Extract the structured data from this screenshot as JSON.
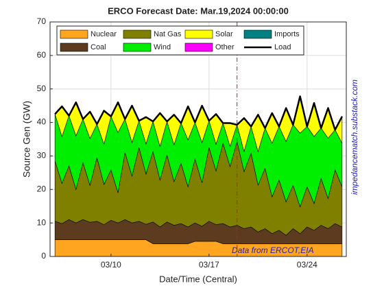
{
  "chart_data": {
    "type": "area",
    "title": "ERCO Forecast Date: Mar.19,2024 00:00:00",
    "xlabel": "Date/Time (Central)",
    "ylabel": "Source Gen (GW)",
    "annotations": [
      "Data from ERCOT,EIA",
      "impedancematch.substack.com"
    ],
    "forecast_line": {
      "x": 19,
      "color": "#b22222"
    },
    "xlim": [
      5.65,
      26.8
    ],
    "xticks": [
      {
        "value": 10,
        "label": "03/10"
      },
      {
        "value": 17,
        "label": "03/17"
      },
      {
        "value": 24,
        "label": "03/24"
      }
    ],
    "ylim": [
      0,
      70
    ],
    "yticks": [
      0,
      10,
      20,
      30,
      40,
      50,
      60,
      70
    ],
    "grid": true,
    "legend": "top",
    "x": [
      6,
      6.5,
      7,
      7.5,
      8,
      8.5,
      9,
      9.5,
      10,
      10.5,
      11,
      11.5,
      12,
      12.5,
      13,
      13.5,
      14,
      14.5,
      15,
      15.5,
      16,
      16.5,
      17,
      17.5,
      18,
      18.5,
      19,
      19.5,
      20,
      20.5,
      21,
      21.5,
      22,
      22.5,
      23,
      23.5,
      24,
      24.5,
      25,
      25.5,
      26,
      26.5
    ],
    "series": [
      {
        "name": "Nuclear",
        "color": "#ffa51f",
        "values": [
          5,
          5,
          5,
          5,
          5,
          5,
          5,
          5,
          5,
          5,
          5,
          5,
          5,
          5,
          3.8,
          3.8,
          3.8,
          3.8,
          3.8,
          3.8,
          4.5,
          4.5,
          4.5,
          4.5,
          3.8,
          3.8,
          3.8,
          3.8,
          3.8,
          3.8,
          3.8,
          3.8,
          3.8,
          3.8,
          3.8,
          3.8,
          3.8,
          3.8,
          3.8,
          3.8,
          3.8,
          3.8
        ]
      },
      {
        "name": "Coal",
        "color": "#5c3b1e",
        "values": [
          5.5,
          4.8,
          6,
          5,
          6,
          5.2,
          5.5,
          4.5,
          5.8,
          5,
          6,
          5,
          5.5,
          4.6,
          6.5,
          5,
          6.5,
          5.5,
          6,
          5,
          5.5,
          4.5,
          6,
          5,
          6,
          5,
          5.5,
          4.5,
          5,
          3.5,
          4.5,
          3,
          4,
          2.5,
          4.5,
          3,
          5,
          4,
          5.5,
          4.5,
          6,
          5
        ]
      },
      {
        "name": "Nat Gas",
        "color": "#808000",
        "values": [
          18,
          12,
          16,
          10,
          17,
          11,
          19,
          12,
          15,
          9,
          20,
          14,
          22,
          15,
          21,
          14,
          20,
          13,
          18,
          12,
          19,
          13,
          22,
          16,
          24,
          18,
          25,
          17,
          22,
          14,
          18,
          11,
          15,
          10,
          13,
          8,
          12,
          8,
          14,
          9,
          16,
          12
        ]
      },
      {
        "name": "Wind",
        "color": "#00ee00",
        "values": [
          14,
          14,
          15,
          16,
          13,
          14,
          10,
          12,
          16,
          18,
          10,
          10,
          8,
          9,
          9,
          10,
          10,
          11,
          12,
          14,
          11,
          12,
          8,
          8,
          6,
          6,
          5,
          6,
          8,
          10,
          12,
          16,
          16,
          18,
          18,
          22,
          18,
          20,
          15,
          18,
          12,
          13
        ]
      },
      {
        "name": "Solar",
        "color": "#ffff00",
        "values": [
          0,
          9,
          0,
          10,
          0,
          8,
          0,
          10,
          0,
          9,
          0,
          11,
          0,
          8,
          0,
          10,
          0,
          9,
          0,
          10,
          0,
          11,
          0,
          9,
          0,
          7,
          0,
          10,
          0,
          11,
          0,
          9,
          0,
          10,
          0,
          11,
          0,
          10,
          0,
          9,
          0,
          8
        ]
      },
      {
        "name": "Other",
        "color": "#ff00ff",
        "values": [
          0,
          0,
          0,
          0,
          0,
          0,
          0,
          0,
          0,
          0,
          0,
          0,
          0,
          0,
          0,
          0,
          0,
          0,
          0,
          0,
          0,
          0,
          0,
          0,
          0,
          0,
          0,
          0,
          0,
          0,
          0,
          0,
          0,
          0,
          0,
          0,
          0,
          0,
          0,
          0,
          0,
          0
        ]
      },
      {
        "name": "Imports",
        "color": "#008080",
        "values": [
          0,
          0,
          0,
          0,
          0,
          0,
          0,
          0,
          0,
          0,
          0,
          0,
          0,
          0,
          0,
          0,
          0,
          0,
          0,
          0,
          0,
          0,
          0,
          0,
          0,
          0,
          0,
          0,
          0,
          0,
          0,
          0,
          0,
          0,
          0,
          0,
          0,
          0,
          0,
          0,
          0,
          0
        ]
      },
      {
        "name": "Load",
        "color": "#000000",
        "type": "line",
        "values": [
          42.5,
          44.8,
          42,
          46,
          41,
          43.2,
          39.5,
          43.5,
          41.8,
          46,
          41,
          45,
          40.5,
          41.6,
          40.3,
          42.8,
          40.3,
          42.3,
          39.8,
          44.8,
          40,
          45,
          40.5,
          42.5,
          39.8,
          39.8,
          39.3,
          41.3,
          38.8,
          42.3,
          38.3,
          42.8,
          38.8,
          44.3,
          39.3,
          47.8,
          38.8,
          45.8,
          38.3,
          44.3,
          37.8,
          41.8
        ]
      }
    ]
  }
}
